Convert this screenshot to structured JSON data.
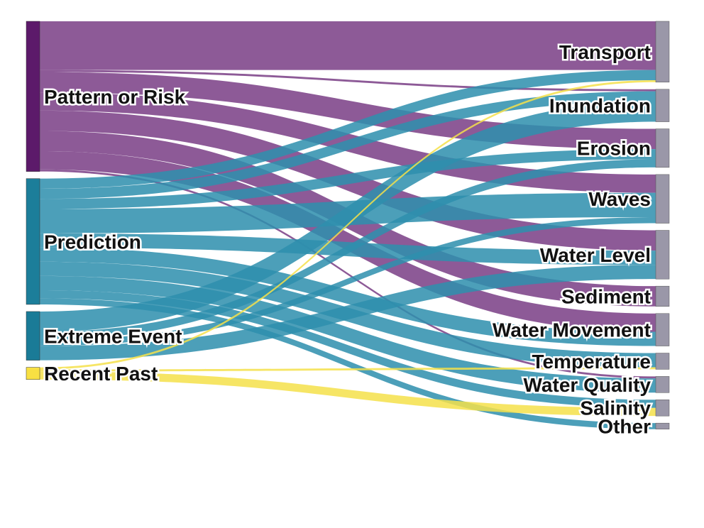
{
  "colors": {
    "pattern": "#7a3f86",
    "prediction": "#2e8fad",
    "extreme": "#2e8fad",
    "recent": "#f5e04a",
    "pattern_node": "#5c1a6a",
    "prediction_node": "#1c7e9a",
    "extreme_node": "#1a7b97",
    "recent_node": "#f8e043",
    "target_node": "#9a97a8"
  },
  "sources": [
    {
      "id": "pattern",
      "label": "Pattern or Risk"
    },
    {
      "id": "prediction",
      "label": "Prediction"
    },
    {
      "id": "extreme",
      "label": "Extreme Event"
    },
    {
      "id": "recent",
      "label": "Recent Past"
    }
  ],
  "targets": [
    {
      "id": "transport",
      "label": "Transport"
    },
    {
      "id": "inundation",
      "label": "Inundation"
    },
    {
      "id": "erosion",
      "label": "Erosion"
    },
    {
      "id": "waves",
      "label": "Waves"
    },
    {
      "id": "water_level",
      "label": "Water Level"
    },
    {
      "id": "sediment",
      "label": "Sediment"
    },
    {
      "id": "water_movement",
      "label": "Water Movement"
    },
    {
      "id": "temperature",
      "label": "Temperature"
    },
    {
      "id": "water_quality",
      "label": "Water Quality"
    },
    {
      "id": "salinity",
      "label": "Salinity"
    },
    {
      "id": "other",
      "label": "Other"
    }
  ],
  "links": [
    {
      "source": "pattern",
      "target": "transport",
      "value": 24
    },
    {
      "source": "pattern",
      "target": "inundation",
      "value": 1
    },
    {
      "source": "pattern",
      "target": "erosion",
      "value": 10
    },
    {
      "source": "pattern",
      "target": "waves",
      "value": 9
    },
    {
      "source": "pattern",
      "target": "water_level",
      "value": 10
    },
    {
      "source": "pattern",
      "target": "sediment",
      "value": 10
    },
    {
      "source": "pattern",
      "target": "water_movement",
      "value": 9
    },
    {
      "source": "pattern",
      "target": "water_quality",
      "value": 1
    },
    {
      "source": "prediction",
      "target": "transport",
      "value": 5
    },
    {
      "source": "prediction",
      "target": "inundation",
      "value": 5
    },
    {
      "source": "prediction",
      "target": "erosion",
      "value": 5
    },
    {
      "source": "prediction",
      "target": "waves",
      "value": 12
    },
    {
      "source": "prediction",
      "target": "water_level",
      "value": 7
    },
    {
      "source": "prediction",
      "target": "water_movement",
      "value": 7
    },
    {
      "source": "prediction",
      "target": "temperature",
      "value": 7
    },
    {
      "source": "prediction",
      "target": "water_quality",
      "value": 7
    },
    {
      "source": "prediction",
      "target": "salinity",
      "value": 4
    },
    {
      "source": "prediction",
      "target": "other",
      "value": 3
    },
    {
      "source": "extreme",
      "target": "inundation",
      "value": 10
    },
    {
      "source": "extreme",
      "target": "erosion",
      "value": 4
    },
    {
      "source": "extreme",
      "target": "waves",
      "value": 3
    },
    {
      "source": "extreme",
      "target": "water_level",
      "value": 7
    },
    {
      "source": "recent",
      "target": "transport",
      "value": 1
    },
    {
      "source": "recent",
      "target": "temperature",
      "value": 1
    },
    {
      "source": "recent",
      "target": "salinity",
      "value": 4
    }
  ]
}
